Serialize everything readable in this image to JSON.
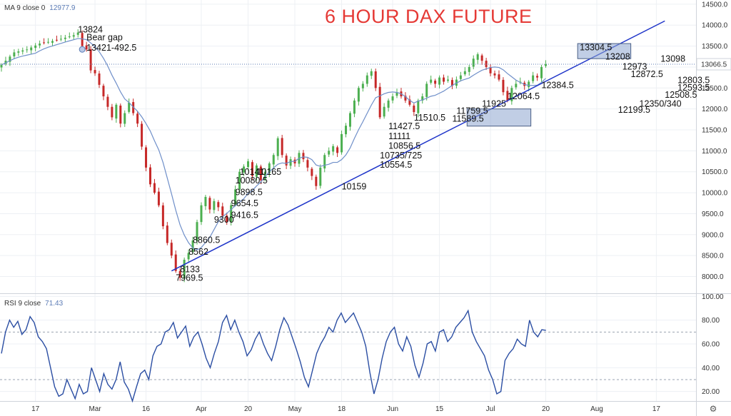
{
  "title": "6 HOUR DAX FUTURE",
  "ma": {
    "label": "MA 9 close 0",
    "value": "12977.9"
  },
  "rsi": {
    "label": "RSI 9 close",
    "value": "71.43"
  },
  "current_price_label": "13066.5",
  "colors": {
    "up": "#4caf50",
    "down": "#c62828",
    "ma": "#6f8fc9",
    "trend": "#1f35c9",
    "rsi": "#2b4ea3",
    "title": "#e53935",
    "grid": "#edf0f4",
    "box": "#8ea6cf"
  },
  "chart_data": [
    {
      "type": "candlestick",
      "title": "6 HOUR DAX FUTURE",
      "ylim": [
        7600,
        14600
      ],
      "y_ticks": [
        "14500.0",
        "14000.0",
        "13500.0",
        "13000.0",
        "12500.0",
        "12000.0",
        "11500.0",
        "11000.0",
        "10500.0",
        "10000.0",
        "9500.0",
        "9000.0",
        "8500.0",
        "8000.0"
      ],
      "x_ticks": [
        "17",
        "Mar",
        "16",
        "Apr",
        "20",
        "May",
        "18",
        "Jun",
        "15",
        "Jul",
        "20",
        "Aug",
        "17"
      ],
      "close_path": [
        [
          0,
          13050
        ],
        [
          3,
          13350
        ],
        [
          6,
          13420
        ],
        [
          9,
          13560
        ],
        [
          12,
          13620
        ],
        [
          15,
          13700
        ],
        [
          17,
          13760
        ],
        [
          18,
          13824
        ],
        [
          19,
          13500
        ],
        [
          20,
          13421
        ],
        [
          21,
          12920
        ],
        [
          22,
          12850
        ],
        [
          24,
          12300
        ],
        [
          26,
          11800
        ],
        [
          27,
          12100
        ],
        [
          28,
          11650
        ],
        [
          29,
          11900
        ],
        [
          30,
          12150
        ],
        [
          31,
          11900
        ],
        [
          32,
          11650
        ],
        [
          33,
          11100
        ],
        [
          34,
          10600
        ],
        [
          35,
          10200
        ],
        [
          36,
          10000
        ],
        [
          37,
          9700
        ],
        [
          38,
          9200
        ],
        [
          39,
          8800
        ],
        [
          40,
          8500
        ],
        [
          41,
          8133
        ],
        [
          42,
          7969.5
        ],
        [
          43,
          8400
        ],
        [
          44,
          8562
        ],
        [
          45,
          8860
        ],
        [
          46,
          9300
        ],
        [
          47,
          9700
        ],
        [
          48,
          9900
        ],
        [
          49,
          9600
        ],
        [
          50,
          9800
        ],
        [
          51,
          9654
        ],
        [
          52,
          9450
        ],
        [
          53,
          9300
        ],
        [
          54,
          9700
        ],
        [
          55,
          10080
        ],
        [
          56,
          10500
        ],
        [
          58,
          10750
        ],
        [
          59,
          10400
        ],
        [
          60,
          10650
        ],
        [
          61,
          10300
        ],
        [
          62,
          10500
        ],
        [
          63,
          10700
        ],
        [
          64,
          10900
        ],
        [
          65,
          11300
        ],
        [
          66,
          10900
        ],
        [
          67,
          10650
        ],
        [
          68,
          10800
        ],
        [
          69,
          10700
        ],
        [
          70,
          10950
        ],
        [
          71,
          10800
        ],
        [
          72,
          10600
        ],
        [
          73,
          10400
        ],
        [
          74,
          10159
        ],
        [
          75,
          10600
        ],
        [
          76,
          10900
        ],
        [
          77,
          11000
        ],
        [
          78,
          11111
        ],
        [
          79,
          10950
        ],
        [
          80,
          11400
        ],
        [
          81,
          11600
        ],
        [
          82,
          11900
        ],
        [
          83,
          12200
        ],
        [
          84,
          12500
        ],
        [
          85,
          12600
        ],
        [
          86,
          12800
        ],
        [
          87,
          12900
        ],
        [
          88,
          12500
        ],
        [
          89,
          11800
        ],
        [
          90,
          12050
        ],
        [
          91,
          12200
        ],
        [
          92,
          12300
        ],
        [
          93,
          12400
        ],
        [
          94,
          12300
        ],
        [
          95,
          12200
        ],
        [
          96,
          12100
        ],
        [
          97,
          11925
        ],
        [
          98,
          12200
        ],
        [
          99,
          12300
        ],
        [
          100,
          12600
        ],
        [
          101,
          12700
        ],
        [
          102,
          12600
        ],
        [
          103,
          12750
        ],
        [
          104,
          12650
        ],
        [
          105,
          12700
        ],
        [
          106,
          12550
        ],
        [
          107,
          12700
        ],
        [
          108,
          12800
        ],
        [
          109,
          12900
        ],
        [
          110,
          13000
        ],
        [
          111,
          13200
        ],
        [
          112,
          13304.5
        ],
        [
          113,
          13150
        ],
        [
          114,
          13000
        ],
        [
          115,
          12850
        ],
        [
          116,
          12800
        ],
        [
          117,
          12700
        ],
        [
          118,
          12400
        ],
        [
          119,
          12199
        ],
        [
          120,
          12500
        ],
        [
          121,
          12600
        ],
        [
          122,
          12650
        ],
        [
          123,
          12550
        ],
        [
          124,
          12650
        ],
        [
          125,
          12800
        ],
        [
          126,
          12750
        ],
        [
          127,
          13000
        ],
        [
          128,
          13066.5
        ]
      ],
      "ma_close": "smoothed 9-period average of close_path",
      "trendline": [
        [
          40,
          8133
        ],
        [
          156,
          14100
        ]
      ],
      "current_price": 13066.5,
      "annotations": [
        {
          "text": "13824",
          "x": 18,
          "y": 13824
        },
        {
          "text": "Bear gap",
          "x": 20,
          "y": 13640
        },
        {
          "text": "13421-492.5",
          "x": 20,
          "y": 13390
        },
        {
          "text": "8860.5",
          "x": 45,
          "y": 8800
        },
        {
          "text": "8562",
          "x": 44,
          "y": 8520
        },
        {
          "text": "8133",
          "x": 42,
          "y": 8100
        },
        {
          "text": "7969.5",
          "x": 41,
          "y": 7900
        },
        {
          "text": "9300",
          "x": 50,
          "y": 9290
        },
        {
          "text": "9416.5",
          "x": 54,
          "y": 9400
        },
        {
          "text": "9654.5",
          "x": 54,
          "y": 9680
        },
        {
          "text": "9898.5",
          "x": 55,
          "y": 9940
        },
        {
          "text": "10080.5",
          "x": 55,
          "y": 10220
        },
        {
          "text": "10141",
          "x": 56,
          "y": 10430
        },
        {
          "text": "10165",
          "x": 60,
          "y": 10430
        },
        {
          "text": "10159",
          "x": 80,
          "y": 10080
        },
        {
          "text": "10554.5",
          "x": 89,
          "y": 10600
        },
        {
          "text": "10735/725",
          "x": 89,
          "y": 10820
        },
        {
          "text": "10856.5",
          "x": 91,
          "y": 11050
        },
        {
          "text": "11111",
          "x": 91,
          "y": 11280
        },
        {
          "text": "11427.5",
          "x": 91,
          "y": 11520
        },
        {
          "text": "11510.5",
          "x": 97,
          "y": 11720
        },
        {
          "text": "11589.5",
          "x": 106,
          "y": 11700
        },
        {
          "text": "11759.5",
          "x": 107,
          "y": 11880
        },
        {
          "text": "11925",
          "x": 113,
          "y": 12050
        },
        {
          "text": "12064.5",
          "x": 119,
          "y": 12230
        },
        {
          "text": "12384.5",
          "x": 127,
          "y": 12500
        },
        {
          "text": "13304.5",
          "x": 136,
          "y": 13400
        },
        {
          "text": "13208",
          "x": 142,
          "y": 13180
        },
        {
          "text": "12973",
          "x": 146,
          "y": 12940
        },
        {
          "text": "12872.5",
          "x": 148,
          "y": 12760
        },
        {
          "text": "13098",
          "x": 155,
          "y": 13130
        },
        {
          "text": "12803.5",
          "x": 159,
          "y": 12620
        },
        {
          "text": "12593.5",
          "x": 159,
          "y": 12440
        },
        {
          "text": "12508.5",
          "x": 156,
          "y": 12270
        },
        {
          "text": "12350/340",
          "x": 150,
          "y": 12050
        },
        {
          "text": "12199.5",
          "x": 145,
          "y": 11910
        }
      ]
    },
    {
      "type": "line",
      "title": "RSI 9 close",
      "ylim": [
        12,
        102
      ],
      "y_ticks": [
        "100.00",
        "80.00",
        "60.00",
        "40.00",
        "20.00"
      ],
      "levels": [
        70,
        30
      ],
      "values": [
        52,
        70,
        80,
        74,
        79,
        68,
        72,
        83,
        78,
        66,
        62,
        56,
        40,
        24,
        16,
        18,
        30,
        22,
        14,
        26,
        18,
        20,
        40,
        30,
        20,
        35,
        26,
        22,
        30,
        45,
        28,
        22,
        12,
        24,
        35,
        38,
        30,
        50,
        58,
        60,
        70,
        72,
        78,
        65,
        70,
        75,
        58,
        66,
        70,
        60,
        48,
        40,
        52,
        62,
        78,
        84,
        72,
        80,
        70,
        62,
        50,
        55,
        64,
        70,
        60,
        52,
        46,
        58,
        72,
        82,
        76,
        66,
        56,
        45,
        32,
        24,
        38,
        52,
        60,
        66,
        74,
        70,
        80,
        86,
        78,
        82,
        86,
        78,
        70,
        58,
        36,
        18,
        30,
        48,
        62,
        70,
        74,
        60,
        54,
        66,
        58,
        42,
        32,
        44,
        60,
        62,
        54,
        70,
        72,
        62,
        66,
        74,
        78,
        82,
        88,
        70,
        62,
        56,
        50,
        38,
        30,
        18,
        20,
        46,
        52,
        56,
        64,
        60,
        58,
        80,
        70,
        66,
        72,
        71.43
      ]
    }
  ]
}
